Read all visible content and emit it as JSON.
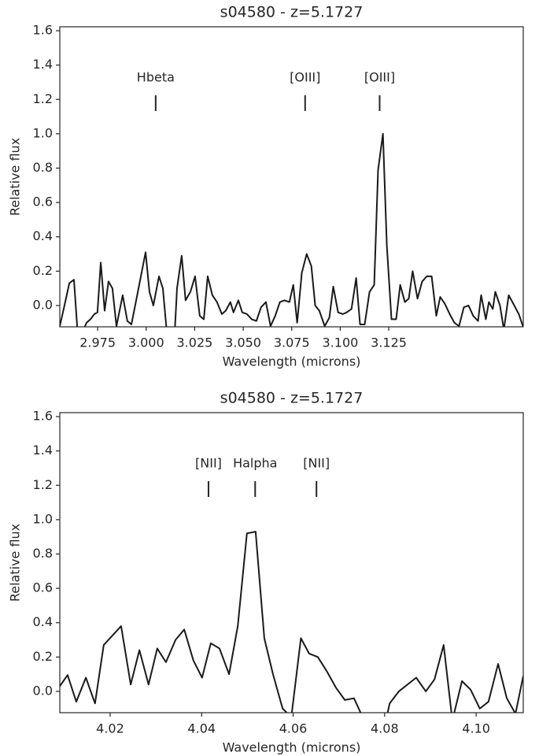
{
  "chart_data": [
    {
      "type": "line",
      "title": "s04580 - z=5.1727",
      "x_label": "Wavelength (microns)",
      "y_label": "Relative flux",
      "color": "#1a1a1a",
      "xlim": [
        2.9555,
        3.1943
      ],
      "ylim": [
        -0.124,
        1.623
      ],
      "xticks": [
        2.975,
        {
          "value": 3,
          "label": "3.000"
        },
        3.025,
        {
          "value": 3.05,
          "label": "3.050"
        },
        3.075,
        {
          "value": 3.1,
          "label": "3.100"
        },
        3.125
      ],
      "yticks": [
        {
          "value": 0,
          "label": "0.0"
        },
        0.2,
        0.4,
        0.6,
        0.8,
        {
          "value": 1,
          "label": "1.0"
        },
        1.2,
        1.4,
        1.6
      ],
      "annotations": [
        {
          "label": "Hbeta",
          "x": 3.0049
        },
        {
          "label": "[OIII]",
          "x": 3.0819
        },
        {
          "label": "[OIII]",
          "x": 3.1203
        }
      ],
      "x": [
        2.9555,
        2.9579,
        2.9604,
        2.9628,
        2.9648,
        2.9673,
        2.9693,
        2.9713,
        2.9733,
        2.9749,
        2.9766,
        2.9786,
        2.9806,
        2.9826,
        2.9847,
        2.9879,
        2.9903,
        2.9924,
        2.9952,
        2.9997,
        3.0017,
        3.0037,
        3.0066,
        3.0086,
        3.0106,
        3.0147,
        3.0159,
        3.0183,
        3.0203,
        3.0228,
        3.0252,
        3.0276,
        3.0297,
        3.0317,
        3.0341,
        3.0365,
        3.039,
        3.041,
        3.0434,
        3.045,
        3.0475,
        3.0495,
        3.0519,
        3.0544,
        3.0568,
        3.0592,
        3.0617,
        3.0641,
        3.0665,
        3.0689,
        3.0713,
        3.0738,
        3.0758,
        3.0778,
        3.0802,
        3.0827,
        3.0851,
        3.0871,
        3.0892,
        3.092,
        3.0944,
        3.0964,
        3.0989,
        3.1013,
        3.1033,
        3.1058,
        3.1082,
        3.1102,
        3.1126,
        3.1151,
        3.1175,
        3.1195,
        3.122,
        3.124,
        3.1264,
        3.1288,
        3.1309,
        3.1333,
        3.1353,
        3.1373,
        3.1398,
        3.1422,
        3.1446,
        3.1471,
        3.1495,
        3.1515,
        3.1539,
        3.1564,
        3.1588,
        3.1612,
        3.1637,
        3.1661,
        3.1685,
        3.171,
        3.1726,
        3.175,
        3.1766,
        3.1786,
        3.1799,
        3.1823,
        3.1843,
        3.1868,
        3.1892,
        3.192,
        3.1941
      ],
      "values": [
        -0.12,
        0.0,
        0.13,
        0.15,
        -0.18,
        -0.15,
        -0.1,
        -0.08,
        -0.05,
        -0.04,
        0.25,
        -0.03,
        0.14,
        0.1,
        -0.12,
        0.06,
        -0.09,
        -0.11,
        0.05,
        0.31,
        0.08,
        0.0,
        0.17,
        0.1,
        -0.15,
        -0.16,
        0.1,
        0.29,
        0.03,
        0.08,
        0.17,
        -0.06,
        -0.08,
        0.17,
        0.06,
        0.02,
        -0.05,
        -0.03,
        0.02,
        -0.04,
        0.03,
        -0.04,
        -0.05,
        -0.08,
        -0.09,
        -0.01,
        0.02,
        -0.12,
        -0.06,
        0.02,
        0.03,
        0.02,
        0.12,
        -0.1,
        0.19,
        0.3,
        0.23,
        0.0,
        -0.03,
        -0.12,
        -0.07,
        0.11,
        -0.04,
        -0.05,
        -0.04,
        -0.02,
        0.16,
        -0.11,
        -0.11,
        0.08,
        0.12,
        0.79,
        1.0,
        0.35,
        -0.08,
        -0.08,
        0.12,
        0.02,
        0.04,
        0.2,
        0.04,
        0.14,
        0.17,
        0.17,
        -0.06,
        0.05,
        0.01,
        -0.05,
        -0.1,
        -0.12,
        -0.01,
        0.0,
        -0.06,
        -0.09,
        0.06,
        -0.08,
        0.02,
        -0.02,
        0.08,
        0.0,
        -0.14,
        0.06,
        0.01,
        -0.05,
        -0.12
      ]
    },
    {
      "type": "line",
      "title": "s04580 - z=5.1727",
      "x_label": "Wavelength (microns)",
      "y_label": "Relative flux",
      "color": "#1a1a1a",
      "xlim": [
        4.009,
        4.1103
      ],
      "ylim": [
        -0.124,
        1.623
      ],
      "xticks": [
        4.02,
        4.04,
        4.06,
        4.08,
        {
          "value": 4.1,
          "label": "4.10"
        }
      ],
      "yticks": [
        {
          "value": 0,
          "label": "0.0"
        },
        0.2,
        0.4,
        0.6,
        0.8,
        {
          "value": 1,
          "label": "1.0"
        },
        1.2,
        1.4,
        1.6
      ],
      "annotations": [
        {
          "label": "[NII]",
          "x": 4.0415
        },
        {
          "label": "Halpha",
          "x": 4.0517
        },
        {
          "label": "[NII]",
          "x": 4.0651
        }
      ],
      "x": [
        4.009,
        4.0107,
        4.0126,
        4.0147,
        4.0167,
        4.0186,
        4.0224,
        4.0245,
        4.0264,
        4.0284,
        4.0303,
        4.0322,
        4.0343,
        4.0362,
        4.0382,
        4.0401,
        4.042,
        4.0439,
        4.046,
        4.0479,
        4.0499,
        4.0518,
        4.0537,
        4.0556,
        4.0577,
        4.0596,
        4.0617,
        4.0635,
        4.0654,
        4.0673,
        4.0694,
        4.0713,
        4.0733,
        4.0752,
        4.0771,
        4.0792,
        4.0811,
        4.0831,
        4.085,
        4.0869,
        4.089,
        4.0909,
        4.0929,
        4.0948,
        4.0969,
        4.0988,
        4.1008,
        4.1027,
        4.1048,
        4.1067,
        4.1086,
        4.1103
      ],
      "values": [
        0.03,
        0.095,
        -0.06,
        0.08,
        -0.07,
        0.27,
        0.38,
        0.04,
        0.24,
        0.04,
        0.25,
        0.17,
        0.3,
        0.36,
        0.18,
        0.08,
        0.28,
        0.25,
        0.1,
        0.38,
        0.92,
        0.93,
        0.31,
        0.1,
        -0.1,
        -0.15,
        0.31,
        0.22,
        0.2,
        0.12,
        0.02,
        -0.05,
        -0.04,
        -0.15,
        -0.25,
        -0.3,
        -0.07,
        0.0,
        0.04,
        0.08,
        0.0,
        0.07,
        0.27,
        -0.17,
        0.06,
        0.01,
        -0.1,
        -0.06,
        0.16,
        -0.04,
        -0.13,
        0.09
      ]
    }
  ]
}
